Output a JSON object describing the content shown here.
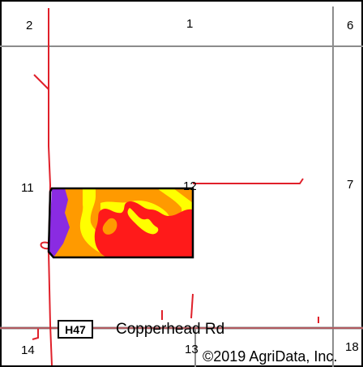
{
  "map": {
    "section_numbers": {
      "s2": "2",
      "s1": "1",
      "s6": "6",
      "s11": "11",
      "s12": "12",
      "s7": "7",
      "s14": "14",
      "s13": "13",
      "s18": "18"
    },
    "road": {
      "shield": "H47",
      "name": "Copperhead Rd"
    },
    "copyright": "©2019 AgriData, Inc.",
    "colors": {
      "section_lines": "#8c8c8c",
      "boundary": "#e0202a",
      "soil_purple": "#8a2be2",
      "soil_orange": "#ff9a00",
      "soil_yellow": "#ffff00",
      "soil_red": "#ff1a1a"
    }
  }
}
